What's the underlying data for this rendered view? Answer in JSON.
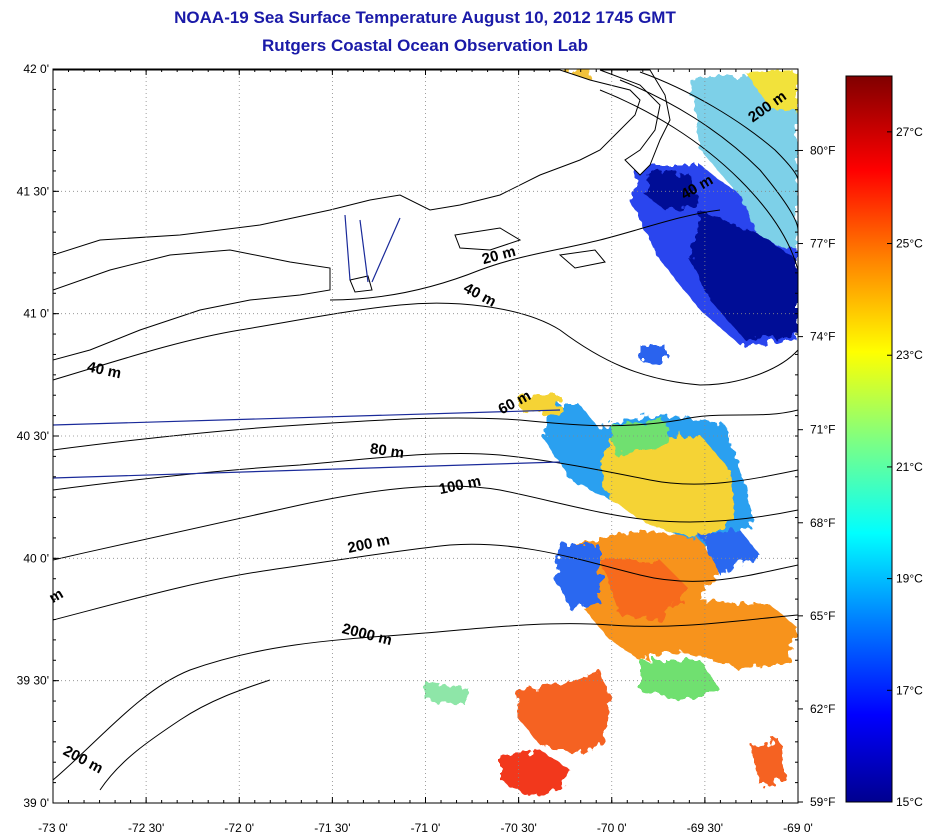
{
  "title_line1": "NOAA-19 Sea Surface Temperature August 10, 2012 1745 GMT",
  "title_line2": "Rutgers Coastal Ocean Observation Lab",
  "map": {
    "lon_range": [
      -73.0,
      -69.0
    ],
    "lat_range": [
      39.0,
      42.0
    ],
    "x_ticks": [
      "-73 0'",
      "-72 30'",
      "-72 0'",
      "-71 30'",
      "-71 0'",
      "-70 30'",
      "-70 0'",
      "-69 30'",
      "-69 0'"
    ],
    "y_ticks": [
      "39 0'",
      "39 30'",
      "40 0'",
      "40 30'",
      "41 0'",
      "41 30'",
      "42 0'"
    ],
    "fahrenheit_ticks": [
      "80°F",
      "77°F",
      "74°F",
      "71°F",
      "68°F",
      "65°F",
      "62°F",
      "59°F"
    ],
    "grid": true,
    "land_color": "#ffffff",
    "coast_color": "#000000",
    "contour_labels": [
      {
        "text": "200 m",
        "lon": -69.15,
        "lat": 41.83,
        "angle": 35
      },
      {
        "text": "40 m",
        "lon": -69.53,
        "lat": 41.5,
        "angle": 30
      },
      {
        "text": "20 m",
        "lon": -70.6,
        "lat": 41.22,
        "angle": 15
      },
      {
        "text": "40 m",
        "lon": -70.72,
        "lat": 41.06,
        "angle": -28
      },
      {
        "text": "40 m",
        "lon": -72.73,
        "lat": 40.75,
        "angle": -12
      },
      {
        "text": "60 m",
        "lon": -70.51,
        "lat": 40.62,
        "angle": 28
      },
      {
        "text": "80 m",
        "lon": -71.21,
        "lat": 40.42,
        "angle": -8
      },
      {
        "text": "100 m",
        "lon": -70.81,
        "lat": 40.28,
        "angle": 12
      },
      {
        "text": "200 m",
        "lon": -71.3,
        "lat": 40.04,
        "angle": 12
      },
      {
        "text": "2000 m",
        "lon": -71.32,
        "lat": 39.67,
        "angle": -14
      },
      {
        "text": "200 m",
        "lon": -72.85,
        "lat": 39.16,
        "angle": -28
      },
      {
        "text": "m",
        "lon": -72.97,
        "lat": 39.83,
        "angle": 30
      }
    ]
  },
  "colorbar": {
    "range_c": [
      15,
      28
    ],
    "celsius_labels": [
      "27°C",
      "25°C",
      "23°C",
      "21°C",
      "19°C",
      "17°C",
      "15°C"
    ],
    "colors": [
      "#00008f",
      "#0000ff",
      "#0080ff",
      "#00ffff",
      "#80ff80",
      "#ffff00",
      "#ff8000",
      "#ff0000",
      "#800000"
    ]
  }
}
